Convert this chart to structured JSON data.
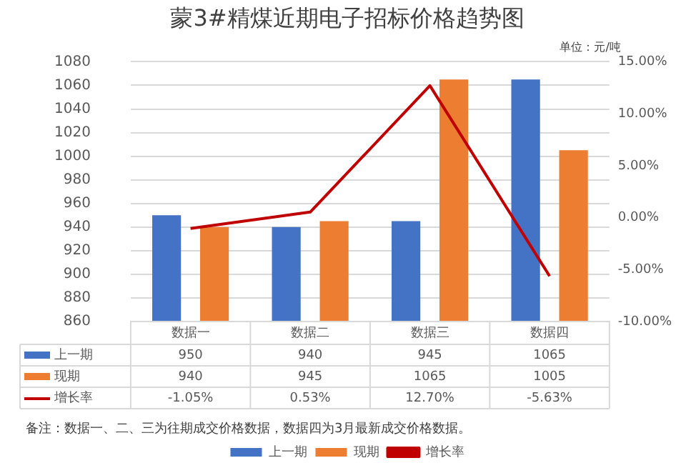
{
  "chart_data": {
    "type": "bar",
    "title": "蒙3#精煤近期电子招标价格趋势图",
    "categories": [
      "数据一",
      "数据二",
      "数据三",
      "数据四"
    ],
    "series": [
      {
        "name": "上一期",
        "color": "#4472c4",
        "values": [
          950,
          940,
          945,
          1065
        ]
      },
      {
        "name": "现期",
        "color": "#ed7d31",
        "values": [
          940,
          945,
          1065,
          1005
        ]
      },
      {
        "name": "增长率",
        "type": "line",
        "axis": "y2",
        "color": "#c00000",
        "values": [
          -1.05,
          0.53,
          12.7,
          -5.63
        ],
        "value_labels": [
          "-1.05%",
          "0.53%",
          "12.70%",
          "-5.63%"
        ]
      }
    ],
    "ylim": [
      860,
      1080
    ],
    "yticks": [
      860,
      880,
      900,
      920,
      940,
      960,
      980,
      1000,
      1020,
      1040,
      1060,
      1080
    ],
    "y2lim": [
      -10,
      15
    ],
    "y2ticks": [
      {
        "value": -10,
        "label": "-10.00%"
      },
      {
        "value": -5,
        "label": "-5.00%"
      },
      {
        "value": 0,
        "label": "0.00%"
      },
      {
        "value": 5,
        "label": "5.00%"
      },
      {
        "value": 10,
        "label": "10.00%"
      },
      {
        "value": 15,
        "label": "15.00%"
      }
    ],
    "grid": "y",
    "legend": "bottom",
    "data_labels": true,
    "marker": "none",
    "line_style": "solid",
    "annotations": [
      "单位：元/吨",
      "备注：数据一、二、三为往期成交价格数据，数据四为3月最新成交价格数据。"
    ]
  }
}
